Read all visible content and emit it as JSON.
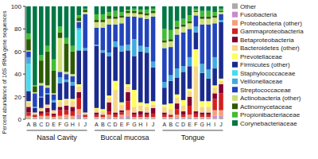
{
  "chart_data": {
    "type": "bar",
    "stacked": true,
    "y_label": "Percent abundance of 16S rRNA gene sequences",
    "annotations": [
      "Nasal Cavity",
      "Buccal mucosa",
      "Tongue"
    ],
    "categories": [
      "A",
      "B",
      "C",
      "D",
      "E",
      "F",
      "G",
      "H",
      "I",
      "J",
      "A",
      "B",
      "C",
      "D",
      "E",
      "F",
      "G",
      "H",
      "I",
      "J",
      "A",
      "B",
      "C",
      "D",
      "E",
      "F",
      "G",
      "H",
      "I",
      "J"
    ],
    "ylim": [
      0,
      100
    ],
    "yticks": [
      0,
      20,
      40,
      60,
      80,
      100
    ],
    "grid": false,
    "legend": "right",
    "series": [
      {
        "name": "Other",
        "color": "#aaaaaa",
        "values": [
          1,
          1,
          1,
          1,
          1,
          1,
          1,
          1,
          2,
          1,
          1,
          1,
          1,
          1,
          1,
          2,
          1,
          1,
          1,
          1,
          1,
          1,
          1,
          1,
          1,
          1,
          1,
          1,
          1,
          2
        ]
      },
      {
        "name": "Fusobacteria",
        "color": "#cc88cc",
        "values": [
          0,
          0,
          0,
          0,
          0,
          0,
          0,
          0,
          2,
          0,
          0,
          0,
          1,
          0,
          1,
          1,
          0,
          0,
          0,
          0,
          0,
          0,
          1,
          0,
          1,
          0,
          0,
          0,
          2,
          1
        ]
      },
      {
        "name": "Proteobacteria (other)",
        "color": "#f4a07a",
        "values": [
          2,
          1,
          2,
          2,
          1,
          2,
          3,
          2,
          5,
          1,
          1,
          1,
          2,
          1,
          2,
          5,
          1,
          1,
          1,
          1,
          1,
          1,
          2,
          1,
          2,
          1,
          1,
          1,
          5,
          5
        ]
      },
      {
        "name": "Gammaproteobacteria",
        "color": "#d42020",
        "values": [
          3,
          1,
          2,
          3,
          1,
          5,
          4,
          4,
          10,
          1,
          2,
          1,
          3,
          2,
          2,
          8,
          2,
          2,
          2,
          3,
          2,
          1,
          5,
          2,
          8,
          3,
          2,
          2,
          10,
          15
        ]
      },
      {
        "name": "Betaproteobacteria",
        "color": "#800030",
        "values": [
          5,
          1,
          2,
          4,
          2,
          3,
          4,
          4,
          5,
          1,
          2,
          1,
          8,
          2,
          2,
          8,
          2,
          3,
          2,
          5,
          2,
          1,
          5,
          3,
          8,
          2,
          2,
          2,
          5,
          8
        ]
      },
      {
        "name": "Bacteroidetes (other)",
        "color": "#f5d68a",
        "values": [
          4,
          2,
          3,
          3,
          3,
          5,
          5,
          5,
          5,
          2,
          3,
          3,
          4,
          20,
          5,
          5,
          5,
          5,
          5,
          3,
          5,
          5,
          5,
          5,
          5,
          40,
          5,
          5,
          5,
          3
        ]
      },
      {
        "name": "Prevotellaceae",
        "color": "#ffff55",
        "values": [
          1,
          0,
          0,
          0,
          0,
          1,
          1,
          2,
          2,
          0,
          1,
          2,
          2,
          8,
          2,
          2,
          15,
          3,
          3,
          3,
          2,
          5,
          3,
          5,
          2,
          15,
          5,
          5,
          2,
          2
        ]
      },
      {
        "name": "Firmicutes (other)",
        "color": "#1a2b8f",
        "values": [
          9,
          4,
          9,
          9,
          7,
          15,
          15,
          12,
          30,
          55,
          55,
          50,
          35,
          30,
          45,
          30,
          30,
          45,
          45,
          30,
          15,
          20,
          15,
          25,
          20,
          15,
          25,
          20,
          15,
          50
        ]
      },
      {
        "name": "Staphylococcaceae",
        "color": "#44ddee",
        "values": [
          24,
          0,
          0,
          0,
          0,
          0,
          0,
          0,
          18,
          0,
          0,
          0,
          0,
          0,
          0,
          0,
          0,
          0,
          0,
          0,
          0,
          0,
          0,
          0,
          0,
          0,
          0,
          0,
          0,
          0
        ]
      },
      {
        "name": "Veillonellaceae",
        "color": "#44aadd",
        "values": [
          6,
          1,
          1,
          1,
          2,
          5,
          2,
          3,
          2,
          2,
          1,
          2,
          3,
          5,
          5,
          5,
          15,
          5,
          5,
          5,
          5,
          5,
          8,
          5,
          8,
          5,
          8,
          8,
          10,
          2
        ]
      },
      {
        "name": "Streptococcaceae",
        "color": "#2244bb",
        "values": [
          5,
          12,
          10,
          5,
          5,
          5,
          5,
          5,
          5,
          30,
          15,
          20,
          25,
          15,
          20,
          25,
          20,
          25,
          25,
          40,
          30,
          25,
          30,
          30,
          25,
          10,
          35,
          40,
          30,
          5
        ]
      },
      {
        "name": "Actinobacteria (other)",
        "color": "#ccdd77",
        "values": [
          1,
          1,
          2,
          2,
          1,
          30,
          2,
          2,
          1,
          2,
          5,
          5,
          5,
          5,
          5,
          3,
          3,
          3,
          3,
          3,
          5,
          5,
          5,
          5,
          5,
          3,
          5,
          5,
          5,
          2
        ]
      },
      {
        "name": "Actinomycetaceae",
        "color": "#2d5a00",
        "values": [
          10,
          5,
          20,
          30,
          20,
          5,
          25,
          20,
          3,
          2,
          2,
          2,
          3,
          2,
          2,
          2,
          2,
          2,
          2,
          2,
          2,
          2,
          2,
          2,
          2,
          1,
          2,
          2,
          2,
          1
        ]
      },
      {
        "name": "Propionibacteriaceae",
        "color": "#44bb33",
        "values": [
          5,
          1,
          5,
          5,
          10,
          5,
          5,
          5,
          2,
          1,
          5,
          5,
          3,
          5,
          3,
          1,
          2,
          2,
          3,
          2,
          10,
          8,
          5,
          5,
          5,
          2,
          5,
          5,
          3,
          2
        ]
      },
      {
        "name": "Corynebacteriaceae",
        "color": "#007744",
        "values": [
          24,
          70,
          43,
          35,
          47,
          18,
          28,
          35,
          8,
          2,
          7,
          7,
          5,
          4,
          5,
          3,
          2,
          3,
          3,
          2,
          20,
          21,
          13,
          11,
          8,
          2,
          4,
          4,
          5,
          2
        ]
      }
    ]
  }
}
